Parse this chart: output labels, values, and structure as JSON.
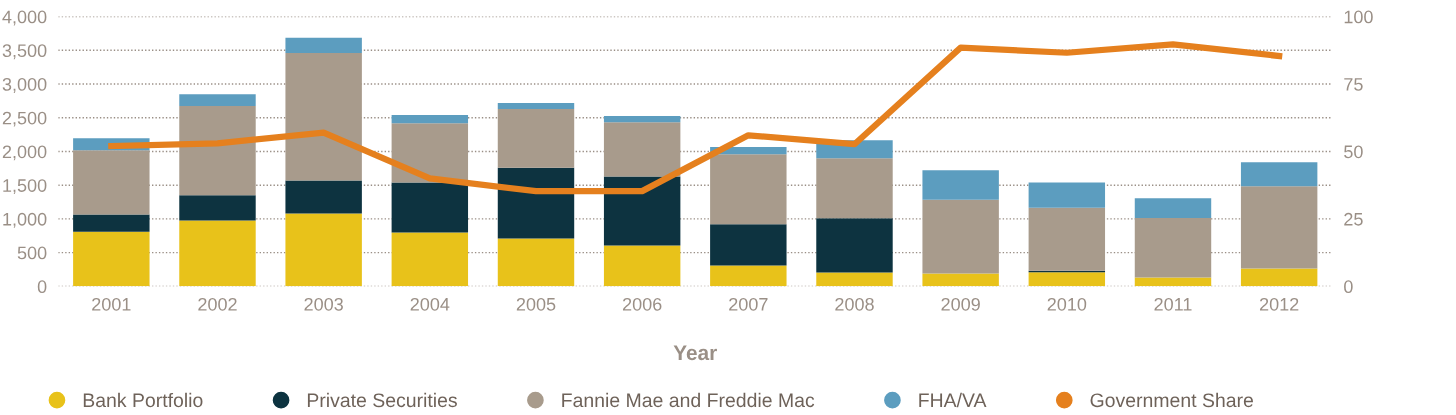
{
  "chart_data": {
    "type": "bar",
    "stacked": true,
    "xlabel": "Year",
    "categories": [
      "2001",
      "2002",
      "2003",
      "2004",
      "2005",
      "2006",
      "2007",
      "2008",
      "2009",
      "2010",
      "2011",
      "2012"
    ],
    "series": [
      {
        "name": "Bank Portfolio",
        "color": "#e8c21a",
        "values": [
          810,
          975,
          1080,
          800,
          710,
          605,
          310,
          205,
          190,
          210,
          130,
          265
        ]
      },
      {
        "name": "Private Securities",
        "color": "#0d3340",
        "values": [
          255,
          375,
          490,
          740,
          1050,
          1025,
          610,
          805,
          0,
          20,
          0,
          0
        ]
      },
      {
        "name": "Fannie Mae and Freddie Mac",
        "color": "#a89b8c",
        "values": [
          955,
          1325,
          1890,
          880,
          870,
          805,
          1040,
          890,
          1095,
          935,
          885,
          1220
        ]
      },
      {
        "name": "FHA/VA",
        "color": "#5c9dbf",
        "values": [
          175,
          175,
          225,
          120,
          90,
          90,
          105,
          265,
          435,
          375,
          290,
          355
        ]
      },
      {
        "name": "Government Share",
        "type": "line",
        "axis": "y2",
        "color": "#e5801e",
        "values": [
          52,
          53,
          57,
          40,
          35.3,
          35.3,
          56,
          52.7,
          88.5,
          86.6,
          89.7,
          85.4
        ]
      }
    ],
    "ylim": [
      0,
      4000
    ],
    "yticks": [
      {
        "value": 0,
        "label": "0"
      },
      {
        "value": 500,
        "label": "500"
      },
      {
        "value": 1000,
        "label": "1,000"
      },
      {
        "value": 1500,
        "label": "1,500"
      },
      {
        "value": 2000,
        "label": "2,000"
      },
      {
        "value": 2500,
        "label": "2,500"
      },
      {
        "value": 3000,
        "label": "3,000"
      },
      {
        "value": 3500,
        "label": "3,500"
      },
      {
        "value": 4000,
        "label": "4,000"
      }
    ],
    "y2lim": [
      0,
      100
    ],
    "y2ticks": [
      0,
      25,
      50,
      75,
      100
    ],
    "grid": "y",
    "line_style": "solid",
    "legend": "bottom"
  }
}
